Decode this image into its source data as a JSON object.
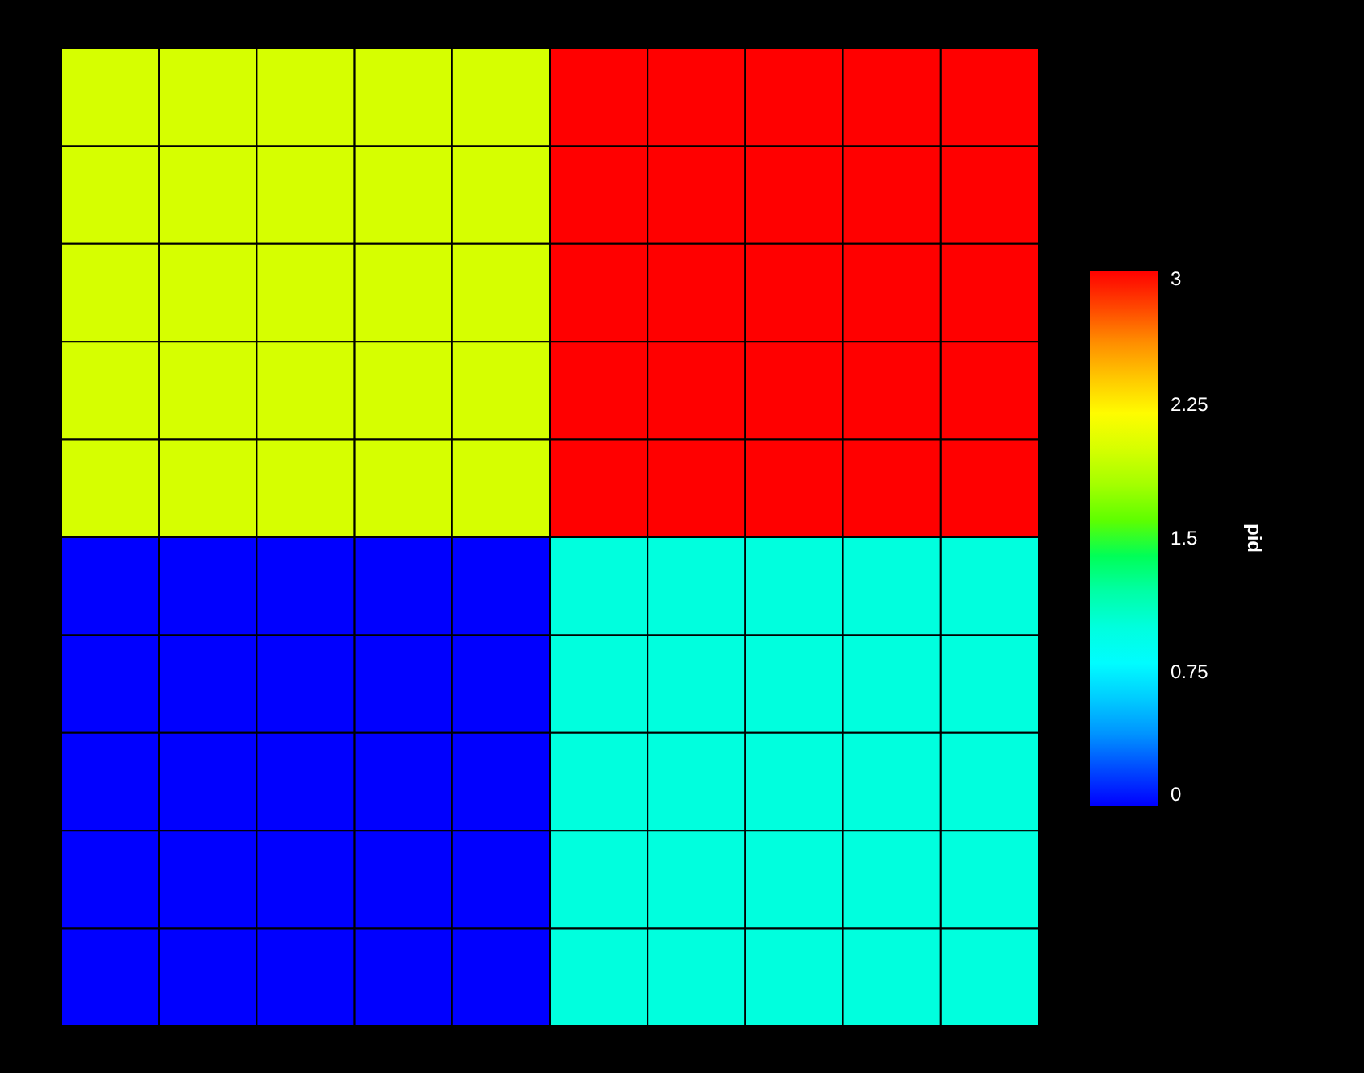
{
  "chart_data": {
    "type": "heatmap",
    "clabel": "pid",
    "tick_labels": false,
    "categories": [
      null,
      null,
      null,
      null,
      null,
      null,
      null,
      null,
      null,
      null
    ],
    "y_categories": [
      null,
      null,
      null,
      null,
      null,
      null,
      null,
      null,
      null,
      null
    ],
    "cells": [
      [
        2,
        2,
        2,
        2,
        2,
        3,
        3,
        3,
        3,
        3
      ],
      [
        2,
        2,
        2,
        2,
        2,
        3,
        3,
        3,
        3,
        3
      ],
      [
        2,
        2,
        2,
        2,
        2,
        3,
        3,
        3,
        3,
        3
      ],
      [
        2,
        2,
        2,
        2,
        2,
        3,
        3,
        3,
        3,
        3
      ],
      [
        2,
        2,
        2,
        2,
        2,
        3,
        3,
        3,
        3,
        3
      ],
      [
        0,
        0,
        0,
        0,
        0,
        1,
        1,
        1,
        1,
        1
      ],
      [
        0,
        0,
        0,
        0,
        0,
        1,
        1,
        1,
        1,
        1
      ],
      [
        0,
        0,
        0,
        0,
        0,
        1,
        1,
        1,
        1,
        1
      ],
      [
        0,
        0,
        0,
        0,
        0,
        1,
        1,
        1,
        1,
        1
      ],
      [
        0,
        0,
        0,
        0,
        0,
        1,
        1,
        1,
        1,
        1
      ]
    ],
    "clim": [
      0,
      3
    ],
    "cticks": [
      0,
      0.75,
      1.5,
      2.25,
      3
    ]
  }
}
